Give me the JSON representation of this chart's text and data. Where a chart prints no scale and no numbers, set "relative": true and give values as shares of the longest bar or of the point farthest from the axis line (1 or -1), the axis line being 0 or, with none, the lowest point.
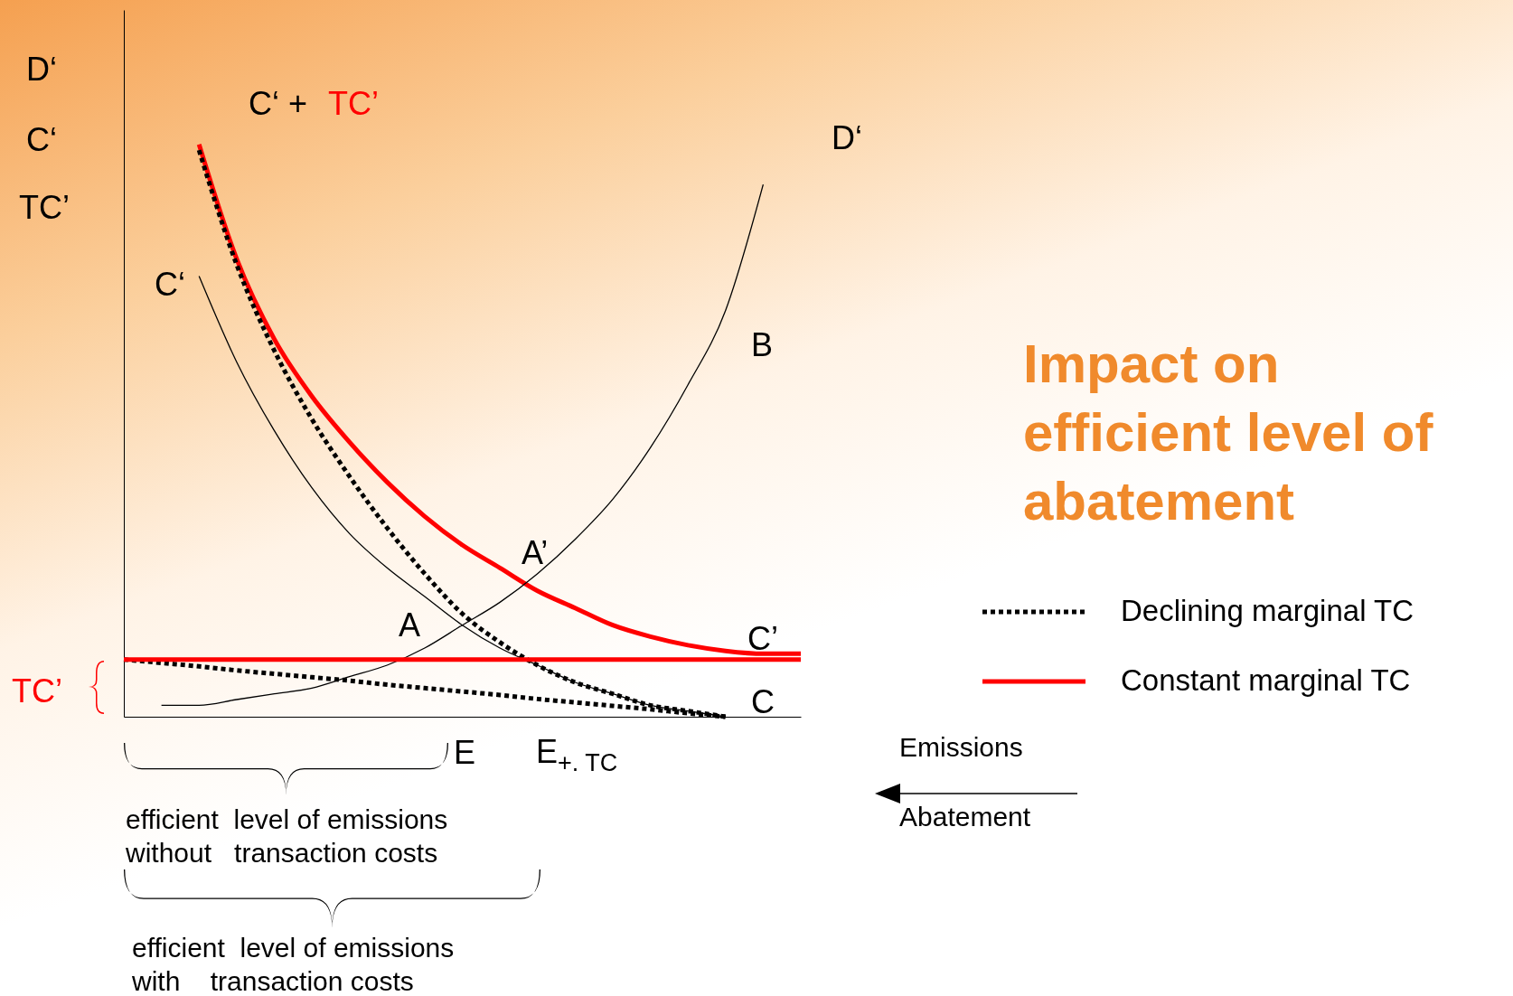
{
  "chart_data": {
    "type": "line",
    "relative": true,
    "title": "Impact on efficient level of abatement",
    "xlabel": "Emissions",
    "ylabel": "D‘ C‘ TC’",
    "categories": [
      null,
      null,
      null,
      null,
      null,
      null,
      null,
      null,
      null,
      null,
      null,
      null,
      null,
      null,
      null,
      null,
      null,
      null,
      null
    ],
    "series": [
      {
        "color": "#000000",
        "line_style": "solid",
        "values": [
          null,
          null,
          0.77,
          0.62,
          0.5,
          0.4,
          0.32,
          0.26,
          0.21,
          0.16,
          0.12,
          0.09,
          0.06,
          0.04,
          0.02,
          0.01,
          0.0,
          null,
          null
        ]
      },
      {
        "color": "#ff0000",
        "line_style": "solid",
        "values": [
          null,
          null,
          1.0,
          0.8,
          0.66,
          0.56,
          0.48,
          0.41,
          0.35,
          0.3,
          0.26,
          0.22,
          0.19,
          0.16,
          0.14,
          0.125,
          0.115,
          0.11,
          0.11
        ]
      },
      {
        "color": "#000000",
        "line_style": "solid",
        "values": [
          null,
          0.02,
          0.02,
          0.03,
          0.04,
          0.05,
          0.07,
          0.09,
          0.12,
          0.16,
          0.2,
          0.25,
          0.31,
          0.38,
          0.47,
          0.58,
          0.71,
          0.93,
          null
        ]
      },
      {
        "color": "#000000",
        "line_style": "dotted",
        "values": [
          null,
          null,
          0.99,
          0.79,
          0.64,
          0.52,
          0.42,
          0.33,
          0.25,
          0.18,
          0.13,
          0.09,
          0.06,
          0.04,
          0.02,
          0.01,
          0.0,
          null,
          null
        ]
      },
      {
        "name": "Declining marginal TC",
        "color": "#000000",
        "line_style": "dotted",
        "values": [
          0.1,
          0.094,
          0.088,
          0.081,
          0.075,
          0.069,
          0.063,
          0.056,
          0.05,
          0.044,
          0.038,
          0.031,
          0.025,
          0.019,
          0.013,
          0.006,
          0.0,
          null,
          null
        ]
      },
      {
        "name": "Constant marginal TC",
        "color": "#ff0000",
        "line_style": "solid",
        "values": [
          0.1,
          0.1,
          0.1,
          0.1,
          0.1,
          0.1,
          0.1,
          0.1,
          0.1,
          0.1,
          0.1,
          0.1,
          0.1,
          0.1,
          0.1,
          0.1,
          0.1,
          0.1,
          0.1
        ]
      }
    ],
    "annotations": [
      "C‘ +",
      "TC’",
      "D‘",
      "C‘",
      "B",
      "A’",
      "A",
      "C’",
      "C",
      "TC’",
      "E",
      "E$_{+. TC}$",
      "efficient  level of emissions",
      "without   transaction costs",
      "efficient  level of emissions",
      "with    transaction costs",
      "Abatement"
    ],
    "legend": "right",
    "grid": false,
    "marker": "none",
    "tick_labels": false
  }
}
